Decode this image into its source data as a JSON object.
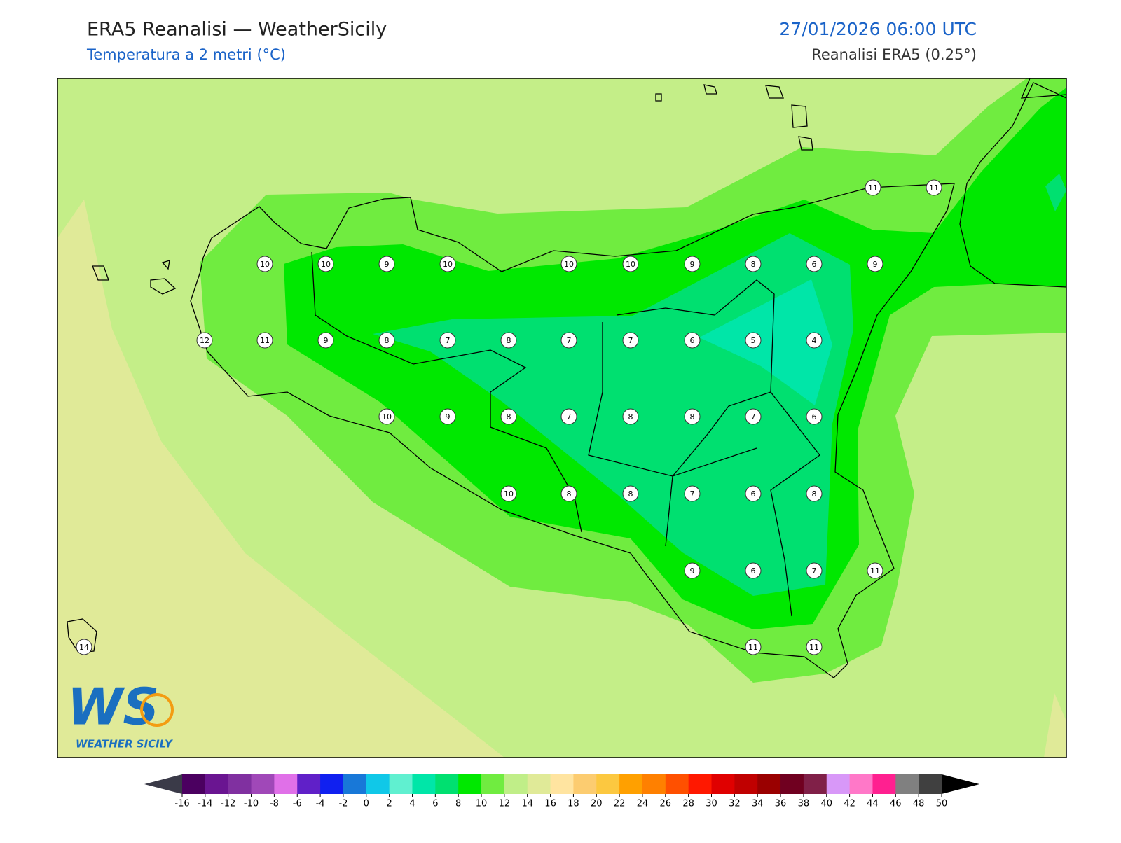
{
  "header": {
    "title": "ERA5 Reanalisi — WeatherSicily",
    "subtitle": "Temperatura a 2 metri (°C)",
    "datetime": "27/01/2026 06:00 UTC",
    "source": "Reanalisi ERA5 (0.25°)"
  },
  "stations": [
    11,
    11,
    10,
    10,
    9,
    10,
    10,
    10,
    9,
    8,
    6,
    9,
    12,
    11,
    9,
    8,
    7,
    8,
    7,
    7,
    6,
    5,
    4,
    10,
    9,
    8,
    7,
    8,
    8,
    7,
    6,
    10,
    8,
    8,
    7,
    6,
    8,
    9,
    6,
    7,
    11,
    14,
    11,
    11
  ],
  "colorbar": {
    "ticks": [
      -16,
      -14,
      -12,
      -10,
      -8,
      -6,
      -4,
      -2,
      0,
      2,
      4,
      6,
      8,
      10,
      12,
      14,
      16,
      18,
      20,
      22,
      24,
      26,
      28,
      30,
      32,
      34,
      36,
      38,
      40,
      42,
      44,
      46,
      48,
      50
    ],
    "under_color": "#3a3a48",
    "over_color": "#000000",
    "colors": [
      "#4b0060",
      "#6a1591",
      "#8030a0",
      "#a048b8",
      "#e070e8",
      "#6020c8",
      "#1020f0",
      "#1878d8",
      "#10c8e8",
      "#60f0d0",
      "#00e6a8",
      "#00e070",
      "#00e800",
      "#70ec40",
      "#c0ee88",
      "#e0ea98",
      "#ffe4a0",
      "#fccc70",
      "#fcc840",
      "#ffa000",
      "#ff8000",
      "#ff5000",
      "#ff1800",
      "#e00000",
      "#c00000",
      "#9a0000",
      "#700020",
      "#802048",
      "#d898f8",
      "#ff78c8",
      "#ff2090",
      "#808080",
      "#404040"
    ]
  },
  "logo": {
    "text": "WS",
    "caption": "WEATHER SICILY"
  }
}
